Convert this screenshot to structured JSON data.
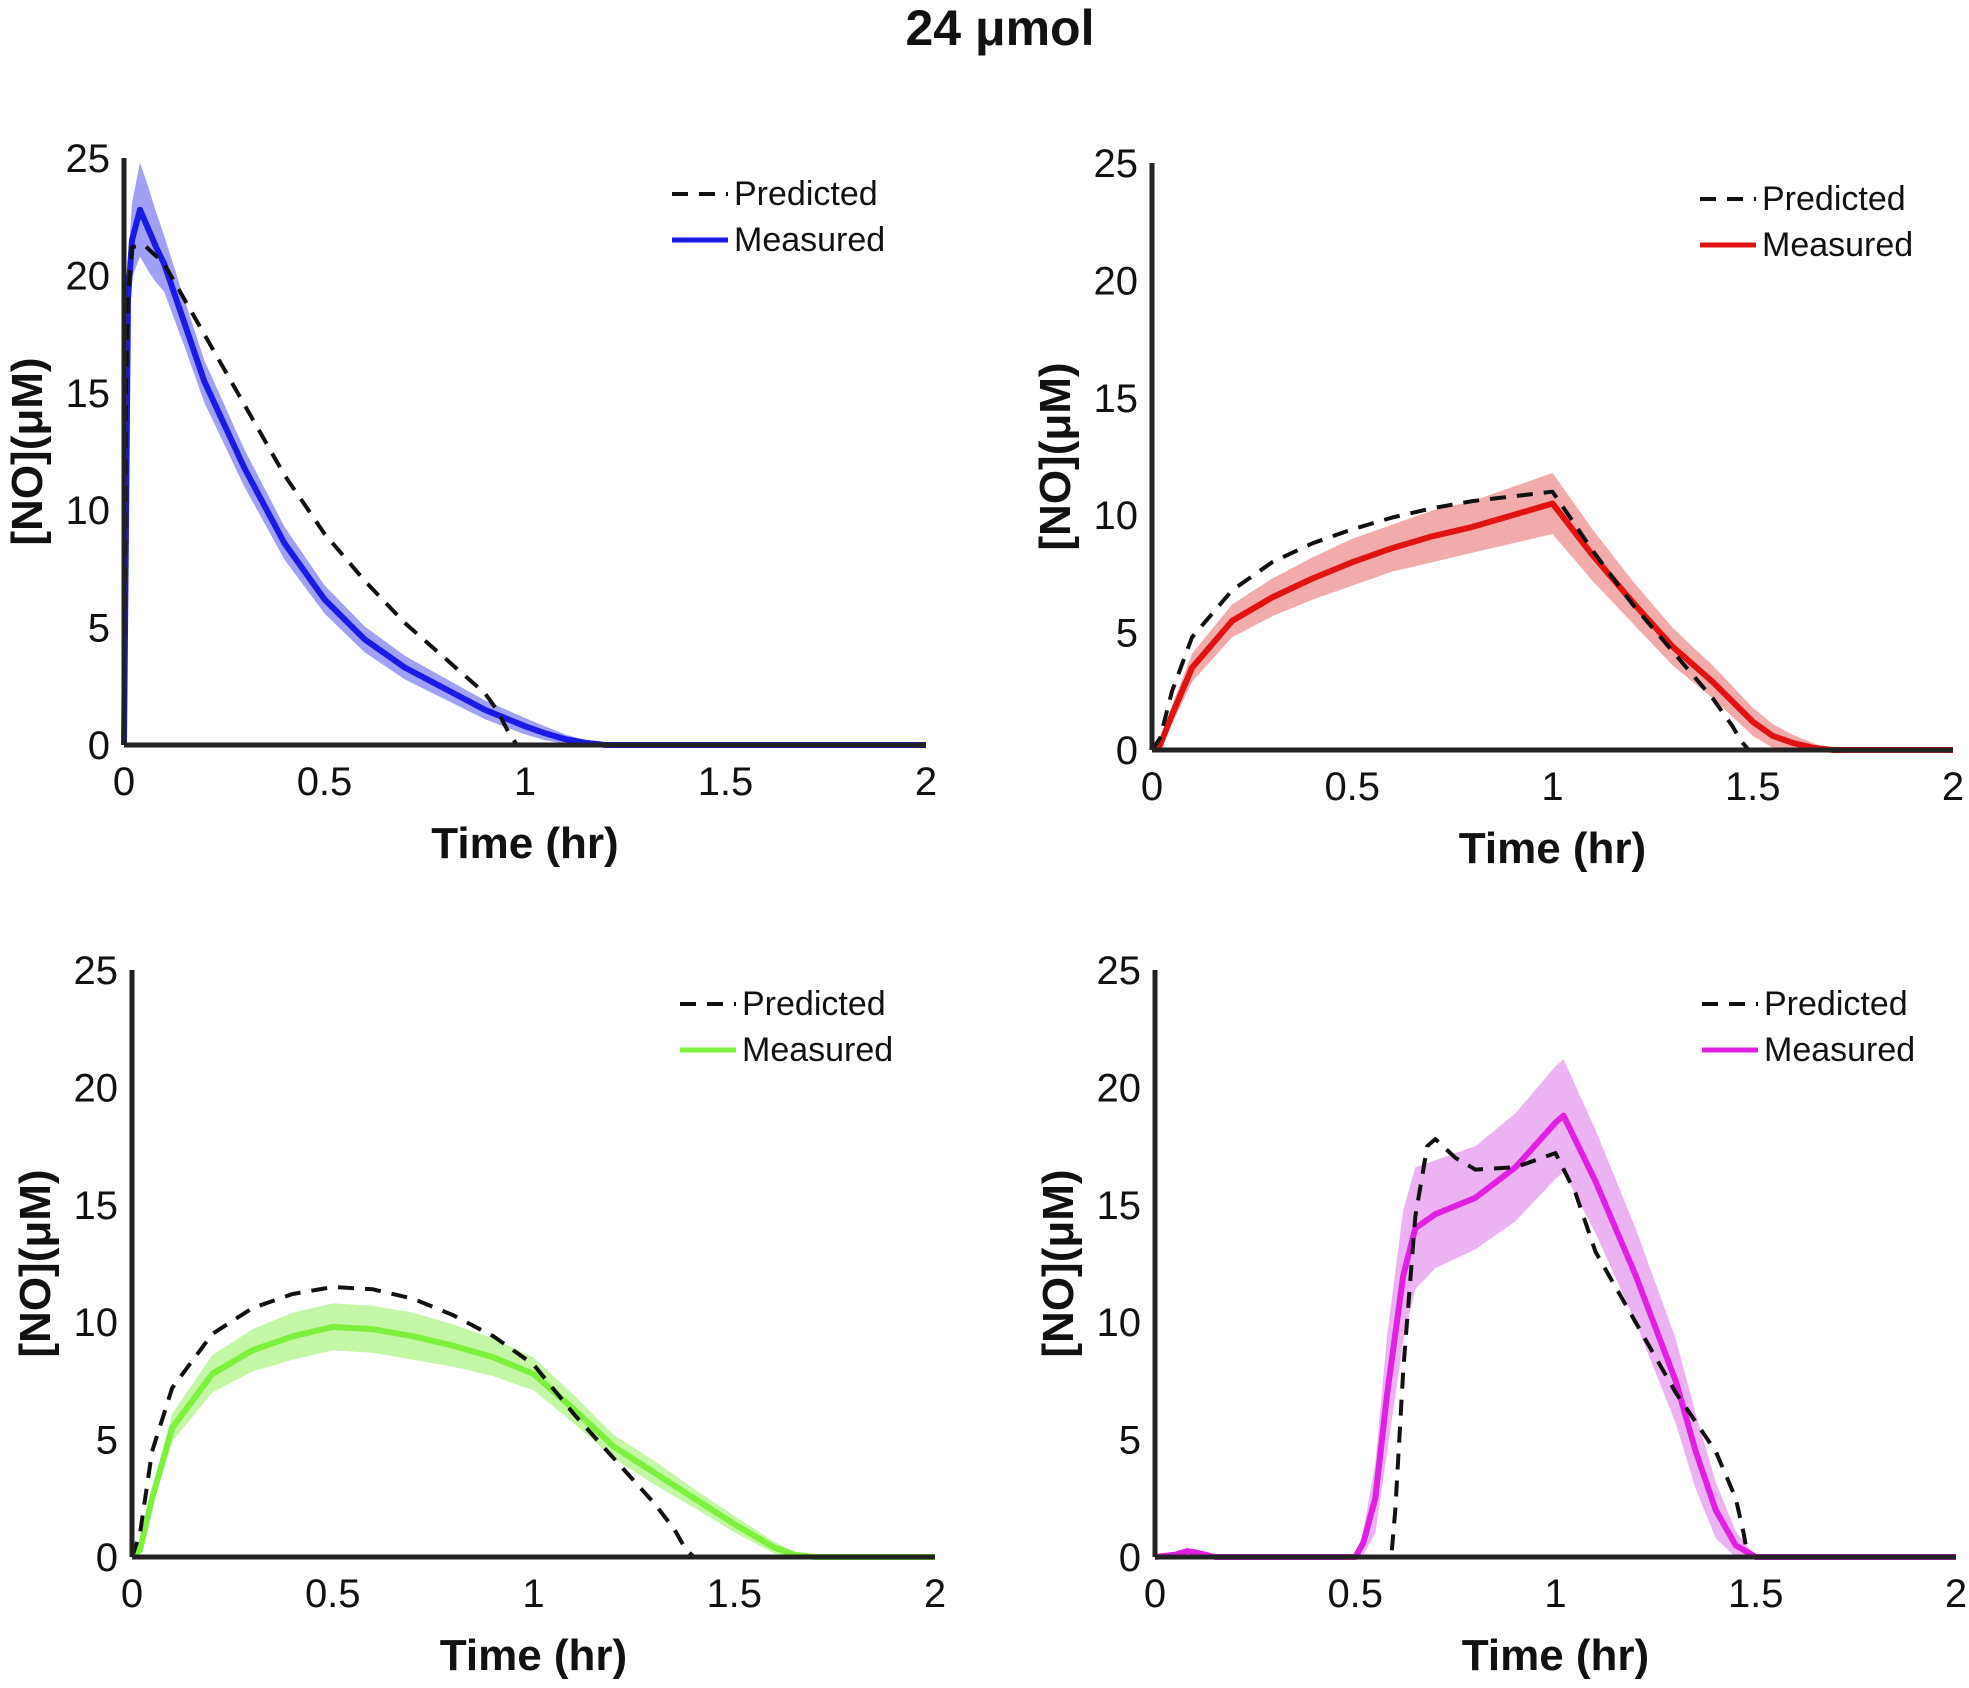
{
  "figure_title": "24 μmol",
  "colors": {
    "predicted": "#111111",
    "axis": "#222222"
  },
  "chart_data": [
    {
      "type": "line",
      "xlabel": "Time (hr)",
      "ylabel": "[NO](μM)",
      "xlim": [
        0,
        2
      ],
      "ylim": [
        0,
        25
      ],
      "xticks": [
        "0",
        "0.5",
        "1",
        "1.5",
        "2"
      ],
      "yticks": [
        "0",
        "5",
        "10",
        "15",
        "20",
        "25"
      ],
      "legend_position": "top-right",
      "series": [
        {
          "name": "Predicted",
          "style": "dashed",
          "color": "#111111",
          "x": [
            0,
            0.005,
            0.01,
            0.02,
            0.05,
            0.1,
            0.2,
            0.3,
            0.4,
            0.5,
            0.6,
            0.7,
            0.8,
            0.9,
            0.93,
            0.96,
            0.98,
            1.0,
            1.5,
            2.0
          ],
          "y": [
            0,
            15,
            19,
            21.2,
            21.3,
            20.5,
            17.5,
            14.5,
            11.5,
            9.0,
            7.0,
            5.2,
            3.7,
            2.2,
            1.5,
            0.5,
            0,
            0,
            0,
            0
          ]
        },
        {
          "name": "Measured",
          "style": "solid",
          "color": "#1a1ae6",
          "band_color": "#8f8ff2",
          "x": [
            0,
            0.01,
            0.02,
            0.04,
            0.06,
            0.08,
            0.1,
            0.15,
            0.2,
            0.3,
            0.4,
            0.5,
            0.6,
            0.7,
            0.8,
            0.9,
            1.0,
            1.05,
            1.1,
            1.15,
            1.2,
            1.5,
            2.0
          ],
          "y": [
            0,
            19,
            21.5,
            22.8,
            22.0,
            21.2,
            20.5,
            18.0,
            15.5,
            11.8,
            8.6,
            6.2,
            4.5,
            3.3,
            2.4,
            1.5,
            0.8,
            0.5,
            0.25,
            0.1,
            0,
            0,
            0
          ],
          "band": [
            0,
            1.5,
            1.6,
            2.0,
            1.8,
            1.5,
            1.2,
            1.0,
            0.9,
            0.8,
            0.7,
            0.6,
            0.55,
            0.5,
            0.45,
            0.4,
            0.35,
            0.3,
            0.2,
            0.1,
            0,
            0,
            0
          ]
        }
      ]
    },
    {
      "type": "line",
      "xlabel": "Time (hr)",
      "ylabel": "[NO](μM)",
      "xlim": [
        0,
        2
      ],
      "ylim": [
        0,
        25
      ],
      "xticks": [
        "0",
        "0.5",
        "1",
        "1.5",
        "2"
      ],
      "yticks": [
        "0",
        "5",
        "10",
        "15",
        "20",
        "25"
      ],
      "legend_position": "top-right",
      "series": [
        {
          "name": "Predicted",
          "style": "dashed",
          "color": "#111111",
          "x": [
            0,
            0.02,
            0.05,
            0.1,
            0.2,
            0.3,
            0.4,
            0.5,
            0.6,
            0.7,
            0.8,
            0.9,
            1.0,
            1.1,
            1.2,
            1.3,
            1.4,
            1.45,
            1.47,
            1.49,
            1.5,
            2.0
          ],
          "y": [
            0,
            0.5,
            2.5,
            4.8,
            6.8,
            8.0,
            8.8,
            9.4,
            9.9,
            10.3,
            10.6,
            10.8,
            11.0,
            8.5,
            6.2,
            4.2,
            2.2,
            1.0,
            0.4,
            0,
            0,
            0
          ]
        },
        {
          "name": "Measured",
          "style": "solid",
          "color": "#e01212",
          "band_color": "#ee9c9c",
          "x": [
            0,
            0.02,
            0.05,
            0.1,
            0.2,
            0.3,
            0.4,
            0.5,
            0.6,
            0.7,
            0.8,
            0.9,
            1.0,
            1.1,
            1.2,
            1.3,
            1.4,
            1.5,
            1.55,
            1.6,
            1.65,
            1.7,
            2.0
          ],
          "y": [
            0,
            0.2,
            1.5,
            3.5,
            5.5,
            6.5,
            7.3,
            8.0,
            8.6,
            9.1,
            9.5,
            10.0,
            10.5,
            8.3,
            6.3,
            4.4,
            2.9,
            1.2,
            0.6,
            0.3,
            0.1,
            0,
            0
          ],
          "band": [
            0,
            0.2,
            0.4,
            0.6,
            0.7,
            0.8,
            0.9,
            1.0,
            1.0,
            1.1,
            1.1,
            1.2,
            1.3,
            1.1,
            0.9,
            0.8,
            0.7,
            0.6,
            0.5,
            0.35,
            0.2,
            0,
            0
          ]
        }
      ]
    },
    {
      "type": "line",
      "xlabel": "Time (hr)",
      "ylabel": "[NO](μM)",
      "xlim": [
        0,
        2
      ],
      "ylim": [
        0,
        25
      ],
      "xticks": [
        "0",
        "0.5",
        "1",
        "1.5",
        "2"
      ],
      "yticks": [
        "0",
        "5",
        "10",
        "15",
        "20",
        "25"
      ],
      "legend_position": "top-right",
      "series": [
        {
          "name": "Predicted",
          "style": "dashed",
          "color": "#111111",
          "x": [
            0,
            0.02,
            0.05,
            0.1,
            0.2,
            0.3,
            0.4,
            0.5,
            0.6,
            0.7,
            0.8,
            0.9,
            1.0,
            1.1,
            1.2,
            1.3,
            1.35,
            1.38,
            1.4,
            1.5,
            2.0
          ],
          "y": [
            0,
            1.0,
            4.5,
            7.2,
            9.5,
            10.6,
            11.2,
            11.5,
            11.4,
            11.0,
            10.3,
            9.4,
            8.2,
            6.1,
            4.2,
            2.3,
            1.2,
            0.3,
            0,
            0,
            0
          ]
        },
        {
          "name": "Measured",
          "style": "solid",
          "color": "#7cf03c",
          "band_color": "#b8f595",
          "x": [
            0,
            0.02,
            0.05,
            0.1,
            0.2,
            0.3,
            0.4,
            0.5,
            0.6,
            0.7,
            0.8,
            0.9,
            1.0,
            1.1,
            1.2,
            1.3,
            1.4,
            1.5,
            1.6,
            1.65,
            1.7,
            2.0
          ],
          "y": [
            0,
            0.3,
            2.5,
            5.5,
            7.8,
            8.8,
            9.4,
            9.8,
            9.7,
            9.4,
            9.0,
            8.5,
            7.8,
            6.3,
            4.7,
            3.6,
            2.5,
            1.4,
            0.4,
            0.1,
            0,
            0
          ],
          "band": [
            0,
            0.2,
            0.4,
            0.6,
            0.8,
            0.9,
            1.0,
            1.0,
            1.0,
            1.0,
            0.9,
            0.8,
            0.7,
            0.6,
            0.5,
            0.5,
            0.4,
            0.35,
            0.25,
            0.1,
            0,
            0
          ]
        }
      ]
    },
    {
      "type": "line",
      "xlabel": "Time (hr)",
      "ylabel": "[NO](μM)",
      "xlim": [
        0,
        2
      ],
      "ylim": [
        0,
        25
      ],
      "xticks": [
        "0",
        "0.5",
        "1",
        "1.5",
        "2"
      ],
      "yticks": [
        "0",
        "5",
        "10",
        "15",
        "20",
        "25"
      ],
      "legend_position": "top-right",
      "series": [
        {
          "name": "Predicted",
          "style": "dashed",
          "color": "#111111",
          "x": [
            0,
            0.5,
            0.59,
            0.6,
            0.62,
            0.65,
            0.68,
            0.7,
            0.75,
            0.8,
            0.9,
            1.0,
            1.05,
            1.1,
            1.2,
            1.3,
            1.4,
            1.45,
            1.47,
            1.48,
            1.5,
            2.0
          ],
          "y": [
            0,
            0,
            0,
            2.0,
            8.0,
            14.5,
            17.5,
            17.8,
            17.0,
            16.5,
            16.6,
            17.2,
            15.5,
            13.0,
            10.0,
            7.0,
            4.5,
            2.5,
            1.0,
            0,
            0,
            0
          ]
        },
        {
          "name": "Measured",
          "style": "solid",
          "color": "#e020e0",
          "band_color": "#e8a6f0",
          "x": [
            0,
            0.05,
            0.08,
            0.1,
            0.15,
            0.5,
            0.52,
            0.55,
            0.58,
            0.62,
            0.65,
            0.7,
            0.8,
            0.9,
            1.0,
            1.02,
            1.1,
            1.2,
            1.3,
            1.35,
            1.4,
            1.45,
            1.5,
            2.0
          ],
          "y": [
            0,
            0.1,
            0.25,
            0.2,
            0,
            0,
            0.6,
            2.5,
            7.0,
            12.0,
            14.0,
            14.6,
            15.3,
            16.6,
            18.5,
            18.8,
            16.0,
            12.0,
            7.5,
            4.5,
            2.0,
            0.5,
            0,
            0
          ],
          "band": [
            0,
            0.05,
            0.1,
            0.1,
            0,
            0,
            0.5,
            1.5,
            2.5,
            2.8,
            2.6,
            2.3,
            2.2,
            2.3,
            2.4,
            2.4,
            2.2,
            2.0,
            1.8,
            1.6,
            1.2,
            0.6,
            0,
            0
          ]
        }
      ]
    }
  ]
}
